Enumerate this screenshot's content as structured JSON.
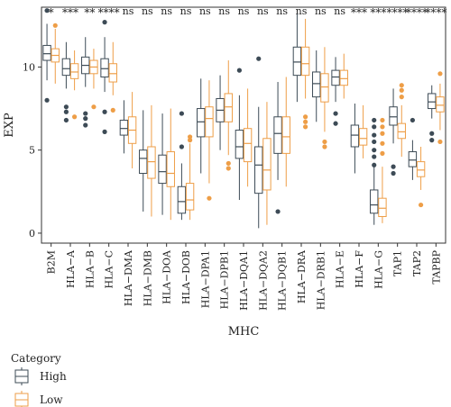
{
  "chart_data": {
    "type": "box",
    "xlabel": "MHC",
    "ylabel": "EXP",
    "ylim": [
      -0.6,
      13.6
    ],
    "yticks": [
      0,
      5,
      10
    ],
    "grid": false,
    "legend": {
      "title": "Category",
      "position": "bottom-left"
    },
    "categories": [
      "B2M",
      "HLA−A",
      "HLA−B",
      "HLA−C",
      "HLA−DMA",
      "HLA−DMB",
      "HLA−DOA",
      "HLA−DOB",
      "HLA−DPA1",
      "HLA−DPB1",
      "HLA−DQA1",
      "HLA−DQA2",
      "HLA−DQB1",
      "HLA−DRA",
      "HLA−DRB1",
      "HLA−E",
      "HLA−F",
      "HLA−G",
      "TAP1",
      "TAP2",
      "TAPBP"
    ],
    "significance": [
      "*",
      "***",
      "**",
      "****",
      "ns",
      "ns",
      "ns",
      "ns",
      "ns",
      "ns",
      "ns",
      "ns",
      "ns",
      "ns",
      "ns",
      "ns",
      "***",
      "***",
      "****",
      "****",
      "****"
    ],
    "series": [
      {
        "name": "High",
        "color": "#3d4b56",
        "boxes": [
          {
            "min": 9.2,
            "q1": 10.4,
            "median": 10.8,
            "q3": 11.3,
            "max": 12.6,
            "outliers": [
              13.4,
              8.0
            ]
          },
          {
            "min": 8.7,
            "q1": 9.5,
            "median": 9.9,
            "q3": 10.5,
            "max": 11.5,
            "outliers": [
              7.6,
              7.3,
              6.8
            ]
          },
          {
            "min": 8.8,
            "q1": 9.6,
            "median": 10.1,
            "q3": 10.6,
            "max": 11.8,
            "outliers": [
              7.2,
              6.9,
              6.5
            ]
          },
          {
            "min": 8.5,
            "q1": 9.4,
            "median": 9.9,
            "q3": 10.5,
            "max": 11.8,
            "outliers": [
              12.7,
              7.3,
              6.1
            ]
          },
          {
            "min": 4.8,
            "q1": 5.9,
            "median": 6.3,
            "q3": 6.8,
            "max": 8.0,
            "outliers": []
          },
          {
            "min": 1.3,
            "q1": 3.6,
            "median": 4.5,
            "q3": 5.0,
            "max": 7.4,
            "outliers": []
          },
          {
            "min": 1.1,
            "q1": 3.0,
            "median": 3.7,
            "q3": 4.7,
            "max": 7.2,
            "outliers": []
          },
          {
            "min": 0.8,
            "q1": 1.2,
            "median": 1.9,
            "q3": 2.8,
            "max": 4.2,
            "outliers": [
              7.2,
              5.2
            ]
          },
          {
            "min": 3.6,
            "q1": 5.8,
            "median": 6.7,
            "q3": 7.5,
            "max": 9.3,
            "outliers": []
          },
          {
            "min": 5.0,
            "q1": 6.7,
            "median": 7.4,
            "q3": 8.1,
            "max": 9.5,
            "outliers": []
          },
          {
            "min": 2.0,
            "q1": 4.5,
            "median": 5.2,
            "q3": 6.2,
            "max": 8.3,
            "outliers": [
              9.8
            ]
          },
          {
            "min": 0.3,
            "q1": 2.4,
            "median": 4.1,
            "q3": 5.2,
            "max": 7.6,
            "outliers": [
              10.5
            ]
          },
          {
            "min": 3.2,
            "q1": 4.8,
            "median": 6.0,
            "q3": 7.0,
            "max": 9.1,
            "outliers": [
              1.3
            ]
          },
          {
            "min": 7.9,
            "q1": 9.5,
            "median": 10.3,
            "q3": 11.2,
            "max": 13.2,
            "outliers": []
          },
          {
            "min": 6.7,
            "q1": 8.2,
            "median": 9.0,
            "q3": 9.7,
            "max": 11.0,
            "outliers": []
          },
          {
            "min": 7.9,
            "q1": 8.9,
            "median": 9.4,
            "q3": 9.8,
            "max": 10.6,
            "outliers": [
              7.2,
              6.6
            ]
          },
          {
            "min": 3.6,
            "q1": 5.2,
            "median": 5.9,
            "q3": 6.5,
            "max": 7.8,
            "outliers": []
          },
          {
            "min": 0.5,
            "q1": 1.2,
            "median": 1.7,
            "q3": 2.6,
            "max": 4.0,
            "outliers": [
              4.6,
              4.1,
              5.0,
              5.5,
              5.9,
              6.4,
              6.8
            ]
          },
          {
            "min": 5.4,
            "q1": 6.5,
            "median": 7.0,
            "q3": 7.6,
            "max": 8.7,
            "outliers": [
              4.0,
              3.6
            ]
          },
          {
            "min": 3.2,
            "q1": 4.0,
            "median": 4.4,
            "q3": 4.9,
            "max": 5.6,
            "outliers": [
              6.8
            ]
          },
          {
            "min": 6.9,
            "q1": 7.5,
            "median": 7.9,
            "q3": 8.4,
            "max": 8.9,
            "outliers": [
              6.0,
              5.6
            ]
          }
        ]
      },
      {
        "name": "Low",
        "color": "#ee9e47",
        "boxes": [
          {
            "min": 9.0,
            "q1": 10.3,
            "median": 10.7,
            "q3": 11.1,
            "max": 12.3,
            "outliers": [
              12.5
            ]
          },
          {
            "min": 8.6,
            "q1": 9.3,
            "median": 9.7,
            "q3": 10.2,
            "max": 11.0,
            "outliers": [
              7.0
            ]
          },
          {
            "min": 8.7,
            "q1": 9.6,
            "median": 10.0,
            "q3": 10.4,
            "max": 11.1,
            "outliers": [
              7.6
            ]
          },
          {
            "min": 8.3,
            "q1": 9.1,
            "median": 9.6,
            "q3": 10.2,
            "max": 11.5,
            "outliers": [
              7.4
            ]
          },
          {
            "min": 3.9,
            "q1": 5.4,
            "median": 6.2,
            "q3": 7.0,
            "max": 8.5,
            "outliers": []
          },
          {
            "min": 1.0,
            "q1": 3.3,
            "median": 4.3,
            "q3": 5.2,
            "max": 7.7,
            "outliers": []
          },
          {
            "min": 0.8,
            "q1": 2.8,
            "median": 3.6,
            "q3": 4.9,
            "max": 7.5,
            "outliers": []
          },
          {
            "min": 0.8,
            "q1": 1.4,
            "median": 2.0,
            "q3": 3.0,
            "max": 5.4,
            "outliers": [
              5.8,
              5.6
            ]
          },
          {
            "min": 3.0,
            "q1": 5.8,
            "median": 6.9,
            "q3": 7.6,
            "max": 9.2,
            "outliers": [
              2.1
            ]
          },
          {
            "min": 4.7,
            "q1": 6.7,
            "median": 7.6,
            "q3": 8.4,
            "max": 10.4,
            "outliers": [
              4.2,
              3.9
            ]
          },
          {
            "min": 2.8,
            "q1": 4.3,
            "median": 5.4,
            "q3": 6.3,
            "max": 8.7,
            "outliers": []
          },
          {
            "min": 0.5,
            "q1": 2.6,
            "median": 3.8,
            "q3": 5.7,
            "max": 7.9,
            "outliers": []
          },
          {
            "min": 2.8,
            "q1": 4.8,
            "median": 5.8,
            "q3": 7.0,
            "max": 9.4,
            "outliers": []
          },
          {
            "min": 8.1,
            "q1": 9.5,
            "median": 10.2,
            "q3": 11.2,
            "max": 12.9,
            "outliers": [
              7.0,
              6.7,
              6.4
            ]
          },
          {
            "min": 6.1,
            "q1": 7.9,
            "median": 8.8,
            "q3": 9.6,
            "max": 11.2,
            "outliers": [
              5.5,
              5.2
            ]
          },
          {
            "min": 8.1,
            "q1": 8.9,
            "median": 9.3,
            "q3": 9.8,
            "max": 10.8,
            "outliers": []
          },
          {
            "min": 4.5,
            "q1": 5.3,
            "median": 5.7,
            "q3": 6.3,
            "max": 7.7,
            "outliers": []
          },
          {
            "min": 0.6,
            "q1": 1.0,
            "median": 1.5,
            "q3": 2.1,
            "max": 4.0,
            "outliers": [
              6.8,
              6.4,
              6.0,
              5.4,
              4.8
            ]
          },
          {
            "min": 4.6,
            "q1": 5.7,
            "median": 6.1,
            "q3": 6.6,
            "max": 7.7,
            "outliers": [
              8.9,
              8.6,
              8.2
            ]
          },
          {
            "min": 2.6,
            "q1": 3.4,
            "median": 3.8,
            "q3": 4.3,
            "max": 5.2,
            "outliers": [
              1.7
            ]
          },
          {
            "min": 6.2,
            "q1": 7.3,
            "median": 7.7,
            "q3": 8.2,
            "max": 9.0,
            "outliers": [
              9.6,
              5.5
            ]
          }
        ]
      }
    ]
  }
}
